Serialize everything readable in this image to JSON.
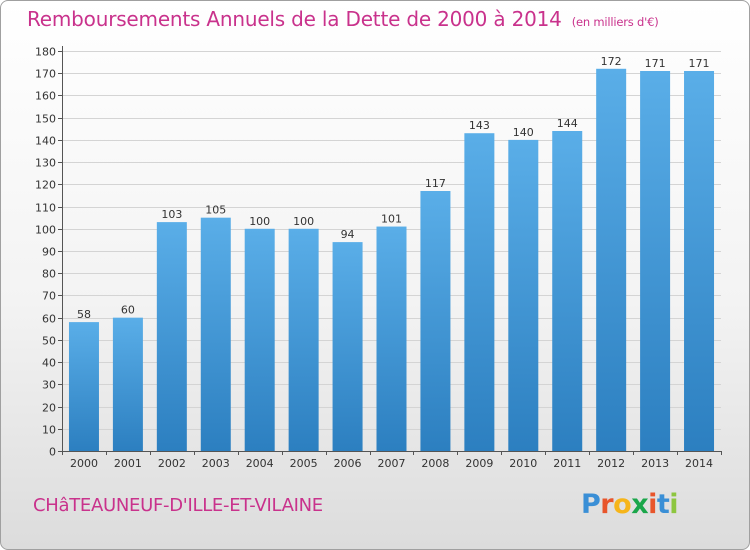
{
  "header": {
    "title": "Remboursements Annuels de la Dette de 2000 à 2014",
    "unit": "(en milliers d'€)"
  },
  "footer": {
    "town": "CHâTEAUNEUF-D'ILLE-ET-VILAINE",
    "logo_letters": [
      "P",
      "r",
      "o",
      "x",
      "i",
      "t",
      "i"
    ],
    "logo_colors": [
      "#3a8fd6",
      "#e8552b",
      "#f6b51a",
      "#1aa64a",
      "#e8552b",
      "#3a8fd6",
      "#8dc63f"
    ]
  },
  "colors": {
    "title": "#c9328c",
    "bar_top": "#5aaee8",
    "bar_bottom": "#2c7fc0",
    "grid": "#d4d4d4",
    "axis": "#555555",
    "text": "#333333"
  },
  "chart_data": {
    "type": "bar",
    "title": "Remboursements Annuels de la Dette de 2000 à 2014",
    "subtitle": "(en milliers d'€)",
    "xlabel": "",
    "ylabel": "",
    "categories": [
      "2000",
      "2001",
      "2002",
      "2003",
      "2004",
      "2005",
      "2006",
      "2007",
      "2008",
      "2009",
      "2010",
      "2011",
      "2012",
      "2013",
      "2014"
    ],
    "values": [
      58,
      60,
      103,
      105,
      100,
      100,
      94,
      101,
      117,
      143,
      140,
      144,
      172,
      171,
      171
    ],
    "data_labels": [
      "58",
      "60",
      "103",
      "105",
      "100",
      "100",
      "94",
      "101",
      "117",
      "143",
      "140",
      "144",
      "172",
      "171",
      "171"
    ],
    "ylim": [
      0,
      180
    ],
    "yticks": [
      0,
      10,
      20,
      30,
      40,
      50,
      60,
      70,
      80,
      90,
      100,
      110,
      120,
      130,
      140,
      150,
      160,
      170,
      180
    ],
    "grid": true,
    "legend": "none"
  }
}
